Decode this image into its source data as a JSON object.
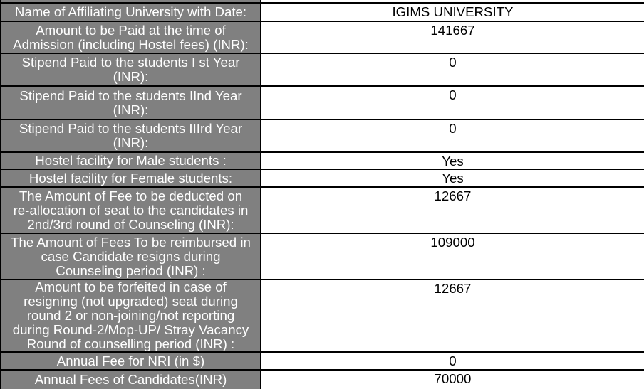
{
  "table": {
    "colors": {
      "label_background": "#808080",
      "label_text": "#ffffff",
      "value_text": "#000000",
      "border": "#000000"
    },
    "rows": [
      {
        "label": "Name of Affiliating University with Date:",
        "value": "IGIMS UNIVERSITY"
      },
      {
        "label": "Amount to be Paid at the time of Admission (including Hostel fees) (INR):",
        "value": "141667"
      },
      {
        "label": "Stipend Paid to the students I st Year (INR):",
        "value": "0"
      },
      {
        "label": "Stipend Paid to the students IInd Year (INR):",
        "value": "0"
      },
      {
        "label": "Stipend Paid to the students IIIrd Year (INR):",
        "value": "0"
      },
      {
        "label": "Hostel facility for Male students :",
        "value": "Yes"
      },
      {
        "label": "Hostel facility for Female students:",
        "value": "Yes"
      },
      {
        "label": "The Amount of Fee to be deducted on re-allocation of seat to the candidates in 2nd/3rd round of Counseling (INR):",
        "value": "12667"
      },
      {
        "label": "The Amount of Fees To be reimbursed in case Candidate resigns during Counseling period (INR) :",
        "value": "109000"
      },
      {
        "label": "Amount to be forfeited in case of resigning (not upgraded) seat during round 2 or non-joining/not reporting during Round-2/Mop-UP/ Stray Vacancy Round of counselling period (INR) :",
        "value": "12667"
      },
      {
        "label": "Annual Fee for NRI (in $)",
        "value": "0"
      },
      {
        "label": "Annual Fees of Candidates(INR)",
        "value": "70000"
      }
    ]
  }
}
